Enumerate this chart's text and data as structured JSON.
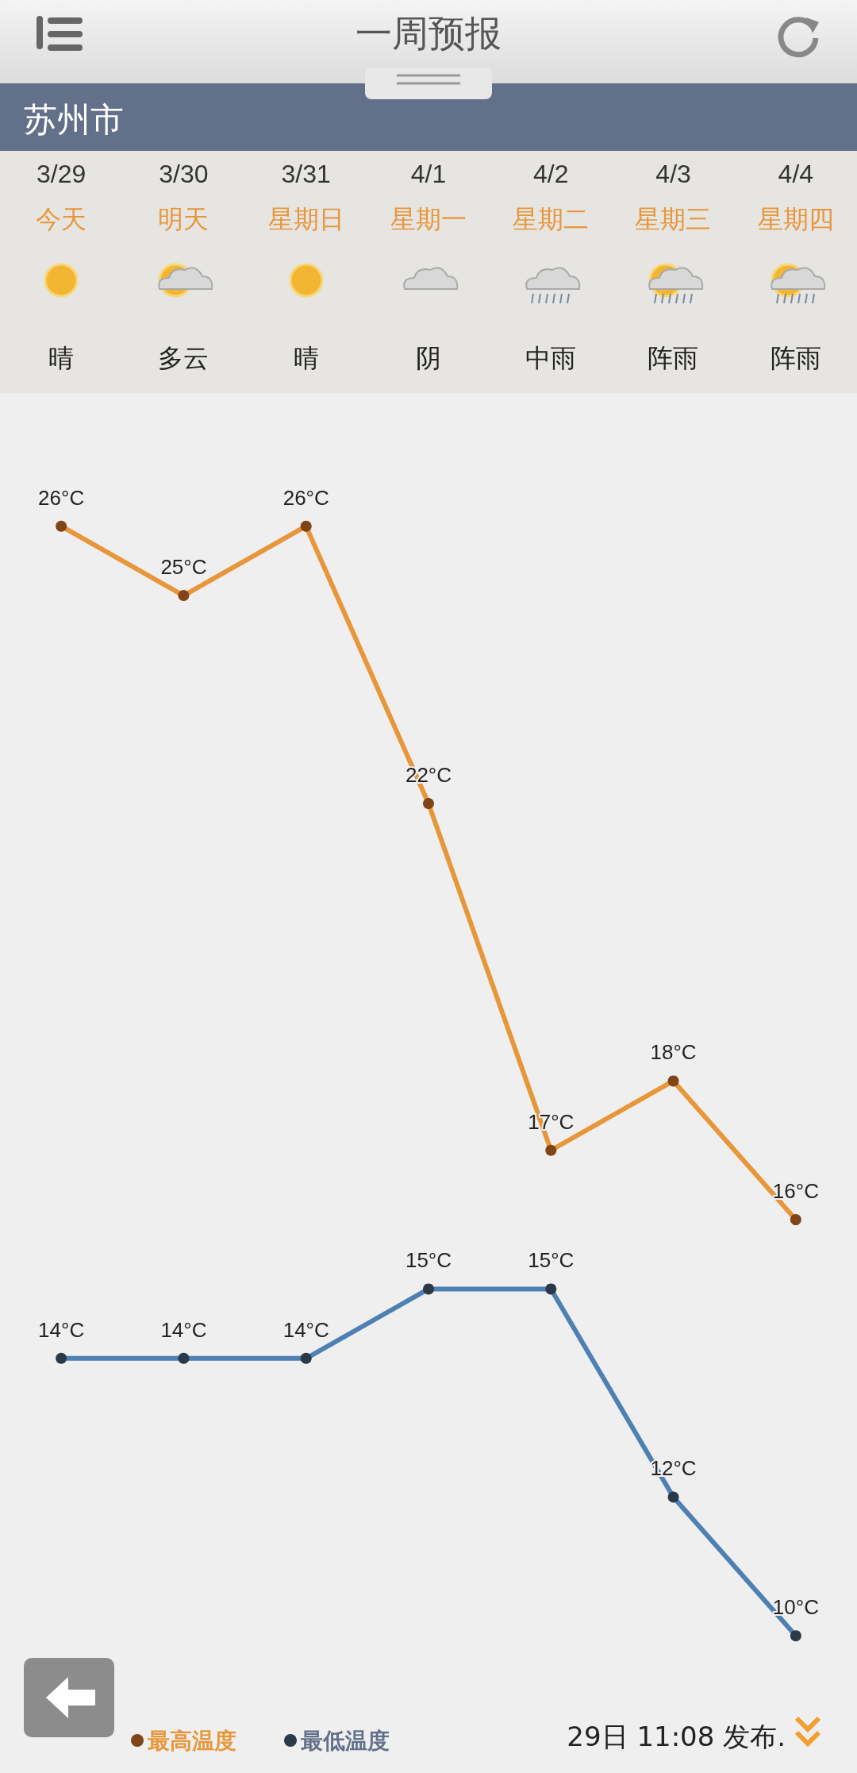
{
  "chart_data": {
    "type": "line",
    "title": "一周预报",
    "subtitle": "苏州市",
    "categories": [
      "3/29",
      "3/30",
      "3/31",
      "4/1",
      "4/2",
      "4/3",
      "4/4"
    ],
    "series": [
      {
        "name": "最高温度",
        "color": "#e8963a",
        "values": [
          26,
          25,
          26,
          22,
          17,
          18,
          16
        ],
        "value_labels": [
          "26°C",
          "25°C",
          "26°C",
          "22°C",
          "17°C",
          "18°C",
          "16°C"
        ]
      },
      {
        "name": "最低温度",
        "color": "#4d80b3",
        "values": [
          14,
          14,
          14,
          15,
          15,
          12,
          10
        ],
        "value_labels": [
          "14°C",
          "14°C",
          "14°C",
          "15°C",
          "15°C",
          "12°C",
          "10°C"
        ]
      }
    ],
    "tick_labels": "x",
    "grid": false,
    "legend": "bottom left",
    "marker": "circle",
    "line_style": "solid",
    "annotations": [
      "今天",
      "明天",
      "星期日",
      "星期一",
      "星期二",
      "星期三",
      "星期四",
      "晴",
      "多云",
      "晴",
      "阴",
      "中雨",
      "阵雨",
      "阵雨",
      "29日 11:08 发布."
    ]
  }
}
